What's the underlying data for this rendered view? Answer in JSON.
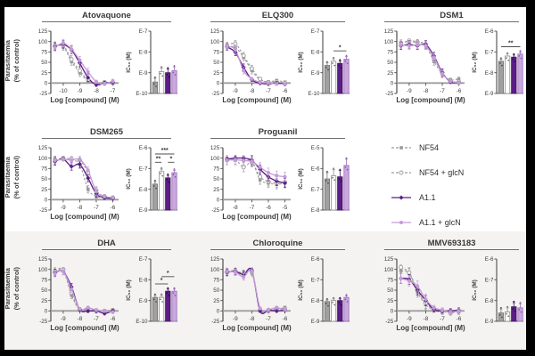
{
  "shared": {
    "ylabel_line1": "Parasitaemia",
    "ylabel_line2": "(% of control)",
    "xlabel": "Log [compound] (M)",
    "inset_ylabel": "IC₅₀ (M)",
    "y_ticks": [
      125,
      100,
      75,
      50,
      25,
      0,
      -25
    ],
    "ylim": [
      -25,
      125
    ]
  },
  "legend": {
    "items": [
      {
        "label": "NF54",
        "marker": "square",
        "dash": true,
        "color": "#9b9b9b",
        "fill": "#9b9b9b",
        "open": false
      },
      {
        "label": "NF54 + glcN",
        "marker": "circle",
        "dash": true,
        "color": "#9b9b9b",
        "fill": "#ffffff",
        "open": true
      },
      {
        "label": "A1.1",
        "marker": "diamond",
        "dash": false,
        "color": "#5b1d86",
        "fill": "#5b1d86",
        "open": false
      },
      {
        "label": "A1.1 + glcN",
        "marker": "circle",
        "dash": false,
        "color": "#c49bd8",
        "fill": "#c49bd8",
        "open": false
      }
    ]
  },
  "colors": {
    "axis": "#4d4d4d",
    "zero_line": "#9e9e9e",
    "text": "#3a3a3a",
    "row3_bg": "#f4f3f2",
    "bar_fills": [
      "#a0a0a0",
      "#ffffff",
      "#5b1d86",
      "#c9a8dc"
    ],
    "bar_strokes": [
      "#757575",
      "#8c8c8c",
      "#41135f",
      "#9b6fbb"
    ],
    "dot_colors": [
      "#4f4f4f",
      "#6f6f6f",
      "#2e0b49",
      "#8a56ad"
    ]
  },
  "chart_data": [
    {
      "type": "line",
      "title": "Atovaquone",
      "show_ylabel": true,
      "x_ticks": [
        -10,
        -9,
        -8,
        -7
      ],
      "x": [
        -10.5,
        -10,
        -9.5,
        -9,
        -8.5,
        -8,
        -7.5,
        -7
      ],
      "err": 9,
      "series": [
        {
          "name": "NF54",
          "y": [
            90,
            88,
            52,
            25,
            5,
            -2,
            0,
            0
          ]
        },
        {
          "name": "NF54 + glcN",
          "y": [
            90,
            91,
            57,
            30,
            8,
            0,
            2,
            0
          ]
        },
        {
          "name": "A1.1",
          "y": [
            88,
            93,
            80,
            48,
            13,
            -4,
            0,
            2
          ]
        },
        {
          "name": "A1.1 + glcN",
          "y": [
            86,
            96,
            82,
            55,
            27,
            3,
            -2,
            5
          ]
        }
      ],
      "inset": {
        "type": "bar",
        "ticks": [
          "E-7",
          "E-8",
          "E-9",
          "E-10"
        ],
        "top": -7,
        "values": [
          -9.45,
          -8.95,
          -9.0,
          -8.9
        ],
        "err": 0.18,
        "sig": []
      }
    },
    {
      "type": "line",
      "title": "ELQ300",
      "show_ylabel": false,
      "x_ticks": [
        -9,
        -8,
        -7,
        -6
      ],
      "x": [
        -9.5,
        -9,
        -8.5,
        -8,
        -7.5,
        -7,
        -6.5,
        -6
      ],
      "err": 8,
      "series": [
        {
          "name": "NF54",
          "y": [
            88,
            86,
            62,
            30,
            8,
            3,
            6,
            2
          ]
        },
        {
          "name": "NF54 + glcN",
          "y": [
            90,
            95,
            66,
            35,
            10,
            2,
            3,
            0
          ]
        },
        {
          "name": "A1.1",
          "y": [
            87,
            74,
            38,
            8,
            0,
            -2,
            0,
            -3
          ]
        },
        {
          "name": "A1.1 + glcN",
          "y": [
            88,
            80,
            30,
            10,
            2,
            0,
            -2,
            -3
          ]
        }
      ],
      "inset": {
        "type": "bar",
        "ticks": [
          "E-7",
          "E-8",
          "E-9",
          "E-10"
        ],
        "top": -7,
        "values": [
          -8.65,
          -8.45,
          -8.55,
          -8.35
        ],
        "err": 0.12,
        "sig": [
          {
            "from": 1,
            "to": 3,
            "label": "*",
            "y": -7.95
          }
        ]
      }
    },
    {
      "type": "line",
      "title": "DSM1",
      "show_ylabel": false,
      "x_ticks": [
        -9,
        -8,
        -7,
        -6
      ],
      "x": [
        -9.5,
        -9,
        -8.5,
        -8,
        -7.5,
        -7,
        -6.5,
        -6
      ],
      "err": 9,
      "series": [
        {
          "name": "NF54",
          "y": [
            97,
            100,
            96,
            90,
            52,
            22,
            8,
            10
          ]
        },
        {
          "name": "NF54 + glcN",
          "y": [
            95,
            102,
            99,
            93,
            58,
            25,
            5,
            3
          ]
        },
        {
          "name": "A1.1",
          "y": [
            90,
            93,
            90,
            93,
            65,
            25,
            3,
            0
          ]
        },
        {
          "name": "A1.1 + glcN",
          "y": [
            92,
            90,
            92,
            90,
            62,
            23,
            5,
            0
          ]
        }
      ],
      "inset": {
        "type": "bar",
        "ticks": [
          "E-6",
          "E-7",
          "E-8",
          "E-9"
        ],
        "top": -6,
        "values": [
          -7.45,
          -7.2,
          -7.25,
          -7.1
        ],
        "err": 0.1,
        "sig": [
          {
            "from": 0,
            "to": 3,
            "label": "**",
            "y": -6.75
          }
        ]
      }
    },
    {
      "type": "line",
      "title": "DSM265",
      "show_ylabel": true,
      "x_ticks": [
        -9,
        -8,
        -7,
        -6
      ],
      "x": [
        -9.5,
        -9,
        -8.5,
        -8,
        -7.5,
        -7,
        -6.5,
        -6
      ],
      "err": 9,
      "series": [
        {
          "name": "NF54",
          "y": [
            93,
            97,
            95,
            85,
            25,
            8,
            4,
            3
          ]
        },
        {
          "name": "NF54 + glcN",
          "y": [
            96,
            100,
            98,
            95,
            65,
            22,
            8,
            5
          ]
        },
        {
          "name": "A1.1",
          "y": [
            92,
            98,
            80,
            85,
            52,
            14,
            5,
            3
          ]
        },
        {
          "name": "A1.1 + glcN",
          "y": [
            95,
            97,
            95,
            97,
            70,
            20,
            8,
            5
          ]
        }
      ],
      "inset": {
        "type": "bar",
        "ticks": [
          "E-6",
          "E-7",
          "E-8",
          "E-9"
        ],
        "top": -6,
        "values": [
          -7.75,
          -7.15,
          -7.45,
          -7.2
        ],
        "err": 0.12,
        "sig": [
          {
            "from": 0,
            "to": 3,
            "label": "***",
            "y": -6.3
          },
          {
            "from": 0,
            "to": 1,
            "label": "**",
            "y": -6.7
          },
          {
            "from": 2,
            "to": 3,
            "label": "*",
            "y": -6.7
          }
        ]
      }
    },
    {
      "type": "line",
      "title": "Proguanil",
      "show_ylabel": false,
      "x_ticks": [
        -8,
        -7,
        -6,
        -5
      ],
      "x": [
        -8.5,
        -8,
        -7.5,
        -7,
        -6.5,
        -6,
        -5.5,
        -5
      ],
      "err": 11,
      "series": [
        {
          "name": "NF54",
          "y": [
            97,
            95,
            95,
            92,
            48,
            40,
            37,
            40
          ]
        },
        {
          "name": "NF54 + glcN",
          "y": [
            95,
            97,
            78,
            90,
            55,
            44,
            40,
            42
          ]
        },
        {
          "name": "A1.1",
          "y": [
            98,
            100,
            100,
            95,
            73,
            55,
            45,
            40
          ]
        },
        {
          "name": "A1.1 + glcN",
          "y": [
            95,
            96,
            94,
            92,
            78,
            65,
            58,
            55
          ]
        }
      ],
      "inset": {
        "type": "bar",
        "ticks": [
          "E-5",
          "E-6",
          "E-7",
          "E-8"
        ],
        "top": -5,
        "values": [
          -6.5,
          -6.35,
          -6.4,
          -5.85
        ],
        "err": 0.3,
        "sig": []
      }
    },
    {
      "type": "line",
      "title": "DHA",
      "show_ylabel": true,
      "x_ticks": [
        -9,
        -8,
        -7,
        -6
      ],
      "x": [
        -9.5,
        -9,
        -8.5,
        -8,
        -7.5,
        -7,
        -6.5,
        -6
      ],
      "err": 8,
      "series": [
        {
          "name": "NF54",
          "y": [
            93,
            97,
            38,
            2,
            0,
            2,
            0,
            0
          ]
        },
        {
          "name": "NF54 + glcN",
          "y": [
            96,
            100,
            44,
            3,
            5,
            0,
            0,
            2
          ]
        },
        {
          "name": "A1.1",
          "y": [
            92,
            95,
            58,
            3,
            0,
            0,
            -6,
            0
          ]
        },
        {
          "name": "A1.1 + glcN",
          "y": [
            90,
            95,
            52,
            5,
            8,
            2,
            0,
            -3
          ]
        }
      ],
      "inset": {
        "type": "bar",
        "ticks": [
          "E-7",
          "E-8",
          "E-9",
          "E-10"
        ],
        "top": -7,
        "values": [
          -8.85,
          -8.85,
          -8.55,
          -8.55
        ],
        "err": 0.1,
        "sig": [
          {
            "from": 0,
            "to": 2,
            "label": "*",
            "y": -8.2
          },
          {
            "from": 1,
            "to": 3,
            "label": "*",
            "y": -7.85
          }
        ]
      }
    },
    {
      "type": "line",
      "title": "Chloroquine",
      "show_ylabel": false,
      "x_ticks": [
        -9,
        -8,
        -7,
        -6
      ],
      "x": [
        -9.5,
        -9,
        -8.5,
        -8,
        -7.5,
        -7,
        -6.5,
        -6
      ],
      "err": 8,
      "series": [
        {
          "name": "NF54",
          "y": [
            92,
            95,
            86,
            92,
            3,
            2,
            5,
            8
          ]
        },
        {
          "name": "NF54 + glcN",
          "y": [
            95,
            97,
            90,
            95,
            2,
            0,
            3,
            5
          ]
        },
        {
          "name": "A1.1",
          "y": [
            93,
            95,
            88,
            98,
            0,
            2,
            0,
            2
          ]
        },
        {
          "name": "A1.1 + glcN",
          "y": [
            95,
            93,
            82,
            96,
            6,
            3,
            8,
            3
          ]
        }
      ],
      "inset": {
        "type": "bar",
        "ticks": [
          "E-6",
          "E-7",
          "E-8",
          "E-9"
        ],
        "top": -6,
        "values": [
          -8.05,
          -8.0,
          -8.0,
          -7.85
        ],
        "err": 0.08,
        "sig": []
      }
    },
    {
      "type": "line",
      "title": "MMV693183",
      "show_ylabel": false,
      "x_ticks": [
        -9,
        -8,
        -7,
        -6
      ],
      "x": [
        -9.5,
        -9,
        -8.5,
        -8,
        -7.5,
        -7,
        -6.5,
        -6
      ],
      "err": 12,
      "series": [
        {
          "name": "NF54",
          "y": [
            97,
            90,
            45,
            15,
            2,
            -3,
            0,
            -3
          ]
        },
        {
          "name": "NF54 + glcN",
          "y": [
            105,
            92,
            50,
            18,
            5,
            0,
            -5,
            0
          ]
        },
        {
          "name": "A1.1",
          "y": [
            78,
            76,
            50,
            25,
            3,
            0,
            0,
            2
          ]
        },
        {
          "name": "A1.1 + glcN",
          "y": [
            78,
            72,
            60,
            28,
            8,
            2,
            -3,
            0
          ]
        }
      ],
      "inset": {
        "type": "bar",
        "ticks": [
          "E-6",
          "E-7",
          "E-8",
          "E-9"
        ],
        "top": -6,
        "values": [
          -8.6,
          -8.55,
          -8.3,
          -8.35
        ],
        "err": 0.2,
        "sig": []
      }
    }
  ]
}
